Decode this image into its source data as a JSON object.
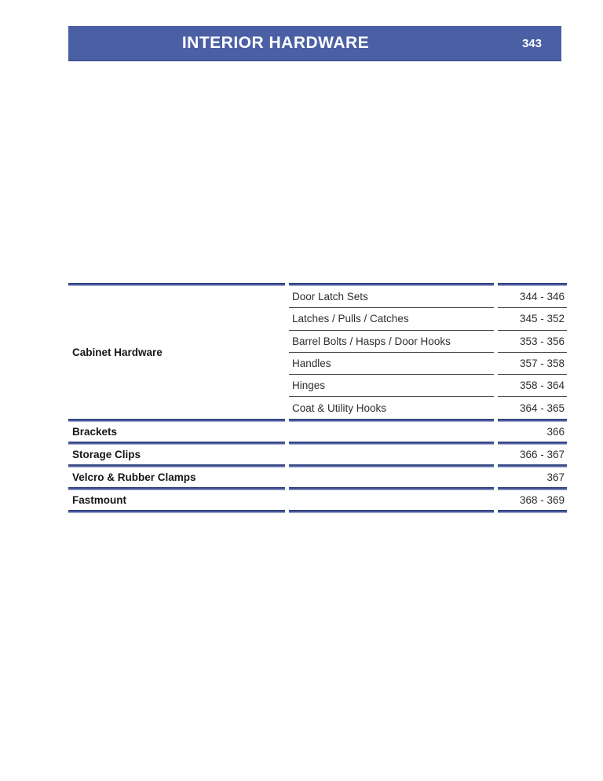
{
  "header": {
    "title": "INTERIOR HARDWARE",
    "page_number": "343"
  },
  "toc": {
    "groups": [
      {
        "label": "Cabinet Hardware",
        "items": [
          {
            "label": "Door Latch Sets",
            "pages": "344 - 346"
          },
          {
            "label": "Latches / Pulls / Catches",
            "pages": "345 - 352"
          },
          {
            "label": "Barrel Bolts / Hasps / Door Hooks",
            "pages": "353 - 356"
          },
          {
            "label": "Handles",
            "pages": "357 - 358"
          },
          {
            "label": "Hinges",
            "pages": "358 - 364"
          },
          {
            "label": "Coat & Utility Hooks",
            "pages": "364 - 365"
          }
        ]
      }
    ],
    "rows": [
      {
        "label": "Brackets",
        "pages": "366"
      },
      {
        "label": "Storage Clips",
        "pages": "366 - 367"
      },
      {
        "label": "Velcro & Rubber Clamps",
        "pages": "367"
      },
      {
        "label": "Fastmount",
        "pages": "368 - 369"
      }
    ]
  },
  "colors": {
    "header_bg": "#4a5fa4",
    "rule_blue": "#5163a3",
    "rule_blue_dark": "#2c3c7a",
    "hairline_gray": "#474747",
    "text_dark": "#161616"
  }
}
